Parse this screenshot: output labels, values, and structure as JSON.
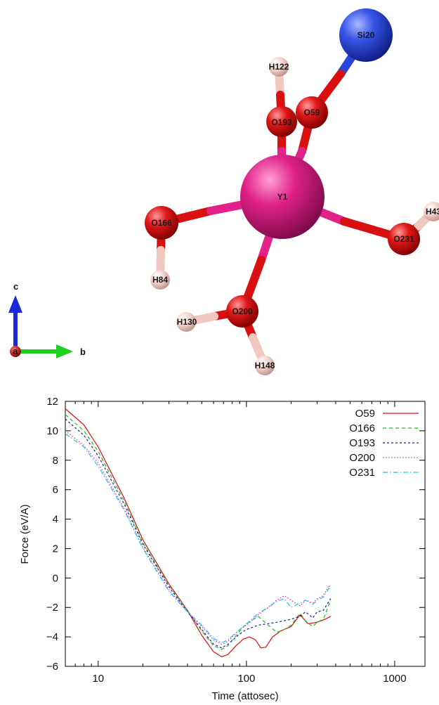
{
  "molecule": {
    "atoms": [
      {
        "id": "Si20",
        "label": "Si20",
        "element": "Si",
        "color": "#2a46d8"
      },
      {
        "id": "H122",
        "label": "H122",
        "element": "H",
        "color": "#f0c8c0"
      },
      {
        "id": "O193",
        "label": "O193",
        "element": "O",
        "color": "#e01414"
      },
      {
        "id": "O59",
        "label": "O59",
        "element": "O",
        "color": "#e01414"
      },
      {
        "id": "Y1",
        "label": "Y1",
        "element": "Y",
        "color": "#e0228a"
      },
      {
        "id": "O166",
        "label": "O166",
        "element": "O",
        "color": "#e01414"
      },
      {
        "id": "H43",
        "label": "H43",
        "element": "H",
        "color": "#f0c8c0"
      },
      {
        "id": "O231",
        "label": "O231",
        "element": "O",
        "color": "#e01414"
      },
      {
        "id": "H84",
        "label": "H84",
        "element": "H",
        "color": "#f0c8c0"
      },
      {
        "id": "O200",
        "label": "O200",
        "element": "O",
        "color": "#e01414"
      },
      {
        "id": "H130",
        "label": "H130",
        "element": "H",
        "color": "#f0c8c0"
      },
      {
        "id": "H148",
        "label": "H148",
        "element": "H",
        "color": "#f0c8c0"
      }
    ],
    "axes": {
      "c": "c",
      "b": "b",
      "a": "a"
    }
  },
  "chart_data": {
    "type": "line",
    "title": "",
    "xlabel": "Time (attosec)",
    "ylabel": "Force (eV/A)",
    "xscale": "log",
    "xlim": [
      6,
      1600
    ],
    "ylim": [
      -6,
      12
    ],
    "xticks": [
      10,
      100,
      1000
    ],
    "xtick_labels": [
      "10",
      "100",
      "1000"
    ],
    "yticks": [
      -6,
      -4,
      -2,
      0,
      2,
      4,
      6,
      8,
      10,
      12
    ],
    "ytick_labels": [
      "−6",
      "−4",
      "−2",
      "0",
      "2",
      "4",
      "6",
      "8",
      "10",
      "12"
    ],
    "legend_position": "top-right",
    "series": [
      {
        "name": "O59",
        "color": "#e01010",
        "dash": "solid",
        "x": [
          6,
          8,
          10,
          15,
          20,
          30,
          40,
          50,
          60,
          68,
          75,
          85,
          95,
          105,
          115,
          125,
          135,
          150,
          170,
          200,
          230,
          260,
          300,
          340,
          370
        ],
        "y": [
          11.5,
          10.4,
          8.9,
          5.4,
          2.6,
          -0.4,
          -2.2,
          -3.9,
          -5.0,
          -5.35,
          -5.2,
          -4.6,
          -4.15,
          -4.0,
          -4.2,
          -4.75,
          -4.7,
          -4.0,
          -3.6,
          -3.3,
          -2.5,
          -3.1,
          -3.0,
          -2.8,
          -2.6
        ]
      },
      {
        "name": "O166",
        "color": "#1bbf1b",
        "dash": "5,4",
        "x": [
          6,
          8,
          10,
          15,
          20,
          30,
          40,
          50,
          60,
          68,
          75,
          90,
          100,
          120,
          140,
          160,
          180,
          200,
          230,
          250,
          280,
          300,
          330,
          370
        ],
        "y": [
          11.1,
          10.0,
          8.6,
          5.2,
          2.4,
          -0.5,
          -2.2,
          -3.6,
          -4.6,
          -4.85,
          -4.6,
          -3.6,
          -3.1,
          -2.6,
          -3.2,
          -3.7,
          -3.5,
          -3.2,
          -2.4,
          -2.9,
          -3.3,
          -3.0,
          -2.8,
          -1.5
        ]
      },
      {
        "name": "O193",
        "color": "#1a1a9e",
        "dash": "3,3",
        "x": [
          6,
          8,
          10,
          15,
          20,
          30,
          40,
          50,
          60,
          68,
          75,
          90,
          100,
          120,
          140,
          160,
          180,
          200,
          230,
          250,
          280,
          300,
          330,
          370
        ],
        "y": [
          10.8,
          9.7,
          8.3,
          5.0,
          2.3,
          -0.6,
          -2.3,
          -3.5,
          -4.5,
          -4.75,
          -4.5,
          -3.8,
          -3.5,
          -3.2,
          -3.1,
          -3.0,
          -2.9,
          -2.8,
          -2.6,
          -2.3,
          -2.7,
          -2.3,
          -2.2,
          -1.4
        ]
      },
      {
        "name": "O200",
        "color": "#e020e0",
        "dash": "1.5,2.5",
        "x": [
          6,
          8,
          10,
          15,
          20,
          30,
          40,
          50,
          60,
          68,
          75,
          90,
          100,
          120,
          140,
          160,
          180,
          200,
          230,
          250,
          280,
          300,
          330,
          360,
          370
        ],
        "y": [
          10.0,
          9.0,
          7.8,
          4.7,
          2.1,
          -0.8,
          -2.3,
          -3.3,
          -4.2,
          -4.5,
          -4.3,
          -3.5,
          -3.2,
          -2.5,
          -2.0,
          -1.5,
          -1.2,
          -1.5,
          -1.9,
          -1.5,
          -1.7,
          -1.4,
          -1.2,
          -0.5,
          -0.7
        ]
      },
      {
        "name": "O231",
        "color": "#1ec8e0",
        "dash": "7,3,1.5,3",
        "x": [
          6,
          8,
          10,
          15,
          20,
          30,
          40,
          50,
          60,
          68,
          75,
          90,
          100,
          120,
          140,
          160,
          180,
          200,
          230,
          250,
          280,
          300,
          330,
          360,
          370
        ],
        "y": [
          9.8,
          8.9,
          7.6,
          4.6,
          2.0,
          -0.9,
          -2.3,
          -3.2,
          -4.1,
          -4.4,
          -4.2,
          -3.5,
          -3.1,
          -2.4,
          -2.0,
          -1.6,
          -1.4,
          -2.0,
          -1.7,
          -1.5,
          -1.8,
          -1.5,
          -1.3,
          -0.7,
          -0.8
        ]
      }
    ]
  }
}
